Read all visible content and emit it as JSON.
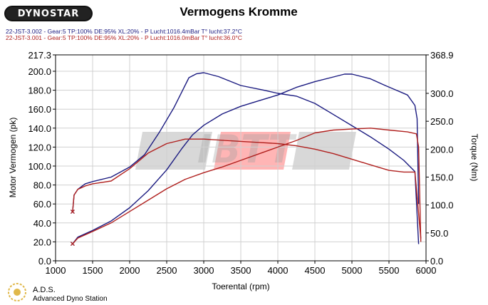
{
  "header": {
    "logo_text": "DYNOSTAR",
    "title": "Vermogens Kromme",
    "run_lines": [
      "22-JST-3.002 - Gear:5 TP:100% DE:95% XL:20%   - P Lucht:1016.4mBar T° lucht:37.2°C",
      "22-JST-3.001 - Gear:5 TP:100% DE:95% XL:20%   - P Lucht:1016.0mBar T° lucht:36.0°C"
    ]
  },
  "footer": {
    "name": "A.D.S.",
    "subtitle": "Advanced Dyno Station"
  },
  "watermark": "IBTT",
  "colors": {
    "run1": "#1a1a80",
    "run2": "#b0201e",
    "grid": "#d0d0d0"
  },
  "chart_data": {
    "type": "line",
    "xlabel": "Toerental (rpm)",
    "ylabel": "Motor Vermogen (pk)",
    "y2label": "Torque (Nm)",
    "xlim": [
      1000,
      6000
    ],
    "ylim": [
      0,
      217.3
    ],
    "y2lim": [
      0,
      368.9
    ],
    "x_ticks": [
      "1000",
      "1500",
      "2000",
      "2500",
      "3000",
      "3500",
      "4000",
      "4500",
      "5000",
      "5500",
      "6000"
    ],
    "y_ticks": [
      "0.0",
      "20.0",
      "40.0",
      "60.0",
      "80.0",
      "100.0",
      "120.0",
      "140.0",
      "160.0",
      "180.0",
      "200.0",
      "217.3"
    ],
    "y2_ticks": [
      "0.0",
      "50.0",
      "100.0",
      "150.0",
      "200.0",
      "250.0",
      "300.0",
      "368.9"
    ],
    "series": [
      {
        "name": "22-JST-3.002",
        "kind": "power",
        "axis": "left",
        "color": "#1a1a80",
        "x": [
          1230,
          1300,
          1500,
          1750,
          2000,
          2250,
          2500,
          2700,
          2850,
          3000,
          3250,
          3500,
          3750,
          4000,
          4250,
          4500,
          4750,
          4900,
          5000,
          5250,
          5450,
          5600,
          5750,
          5850,
          5880,
          5900
        ],
        "y": [
          18,
          25,
          32,
          42,
          56,
          74,
          96,
          118,
          133,
          143,
          155,
          163,
          169,
          175,
          183,
          189,
          194,
          197,
          197,
          192,
          185,
          180,
          175,
          164,
          150,
          60
        ]
      },
      {
        "name": "22-JST-3.002",
        "kind": "torque",
        "axis": "right",
        "color": "#1a1a80",
        "x": [
          1230,
          1250,
          1300,
          1400,
          1500,
          1750,
          2000,
          2200,
          2400,
          2600,
          2800,
          2900,
          3000,
          3200,
          3500,
          3800,
          4000,
          4250,
          4500,
          4750,
          5000,
          5250,
          5500,
          5700,
          5850,
          5900
        ],
        "y": [
          88,
          118,
          128,
          138,
          142,
          150,
          168,
          190,
          230,
          275,
          328,
          335,
          337,
          330,
          314,
          306,
          300,
          295,
          282,
          262,
          242,
          222,
          200,
          180,
          160,
          30
        ]
      },
      {
        "name": "22-JST-3.001",
        "kind": "power",
        "axis": "left",
        "color": "#b0201e",
        "x": [
          1230,
          1300,
          1500,
          1750,
          2000,
          2250,
          2500,
          2750,
          3000,
          3250,
          3500,
          3750,
          4000,
          4250,
          4500,
          4750,
          5000,
          5250,
          5500,
          5750,
          5870,
          5900,
          5930
        ],
        "y": [
          18,
          24,
          31,
          40,
          52,
          64,
          76,
          86,
          93,
          99,
          106,
          113,
          120,
          127,
          135,
          138,
          139,
          140,
          138,
          136,
          134,
          120,
          20
        ]
      },
      {
        "name": "22-JST-3.001",
        "kind": "torque",
        "axis": "right",
        "color": "#b0201e",
        "x": [
          1230,
          1250,
          1300,
          1400,
          1500,
          1750,
          2000,
          2250,
          2500,
          2750,
          3000,
          3250,
          3500,
          3750,
          4000,
          4250,
          4500,
          4750,
          5000,
          5250,
          5500,
          5700,
          5850,
          5930
        ],
        "y": [
          88,
          118,
          128,
          134,
          138,
          143,
          165,
          193,
          210,
          218,
          218,
          216,
          214,
          212,
          210,
          206,
          200,
          192,
          182,
          172,
          162,
          159,
          159,
          40
        ]
      }
    ]
  }
}
